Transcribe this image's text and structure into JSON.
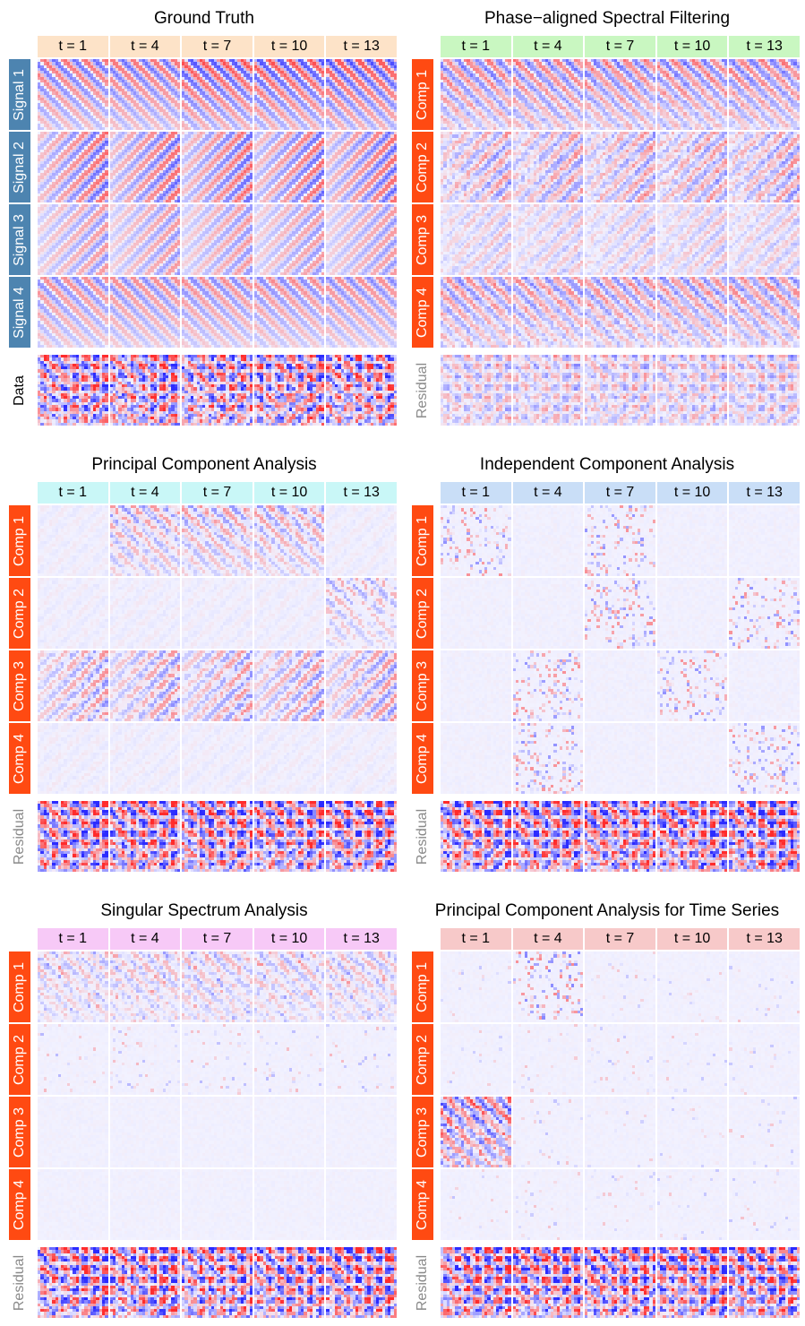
{
  "colors": {
    "negative": "#2b2bff",
    "positive": "#ff2b2b",
    "neutral": "#f2f2ff",
    "component_strip": "#ff4a12",
    "signal_strip": "#4d84b0"
  },
  "time_labels": [
    "t = 1",
    "t = 4",
    "t = 7",
    "t = 10",
    "t = 13"
  ],
  "panels": [
    {
      "id": "ground-truth",
      "title": "Ground Truth",
      "header_color": "#fde3c8",
      "rows": [
        {
          "label": "Signal 1",
          "style": "signal"
        },
        {
          "label": "Signal 2",
          "style": "signal"
        },
        {
          "label": "Signal 3",
          "style": "signal"
        },
        {
          "label": "Signal 4",
          "style": "signal"
        },
        {
          "label": "Data",
          "style": "data"
        }
      ]
    },
    {
      "id": "phase-aligned",
      "title": "Phase−aligned Spectral Filtering",
      "header_color": "#c9f7c1",
      "rows": [
        {
          "label": "Comp 1",
          "style": "comp"
        },
        {
          "label": "Comp 2",
          "style": "comp"
        },
        {
          "label": "Comp 3",
          "style": "comp"
        },
        {
          "label": "Comp 4",
          "style": "comp"
        },
        {
          "label": "Residual",
          "style": "residual"
        }
      ]
    },
    {
      "id": "pca",
      "title": "Principal Component Analysis",
      "header_color": "#c9f7f7",
      "rows": [
        {
          "label": "Comp 1",
          "style": "comp"
        },
        {
          "label": "Comp 2",
          "style": "comp"
        },
        {
          "label": "Comp 3",
          "style": "comp"
        },
        {
          "label": "Comp 4",
          "style": "comp"
        },
        {
          "label": "Residual",
          "style": "residual"
        }
      ]
    },
    {
      "id": "ica",
      "title": "Independent Component Analysis",
      "header_color": "#c9def7",
      "rows": [
        {
          "label": "Comp 1",
          "style": "comp"
        },
        {
          "label": "Comp 2",
          "style": "comp"
        },
        {
          "label": "Comp 3",
          "style": "comp"
        },
        {
          "label": "Comp 4",
          "style": "comp"
        },
        {
          "label": "Residual",
          "style": "residual"
        }
      ]
    },
    {
      "id": "ssa",
      "title": "Singular Spectrum Analysis",
      "header_color": "#f7c9f7",
      "rows": [
        {
          "label": "Comp 1",
          "style": "comp"
        },
        {
          "label": "Comp 2",
          "style": "comp"
        },
        {
          "label": "Comp 3",
          "style": "comp"
        },
        {
          "label": "Comp 4",
          "style": "comp"
        },
        {
          "label": "Residual",
          "style": "residual"
        }
      ]
    },
    {
      "id": "pca-ts",
      "title": "Principal Component Analysis for Time Series",
      "header_color": "#f7c9c9",
      "rows": [
        {
          "label": "Comp 1",
          "style": "comp"
        },
        {
          "label": "Comp 2",
          "style": "comp"
        },
        {
          "label": "Comp 3",
          "style": "comp"
        },
        {
          "label": "Comp 4",
          "style": "comp"
        },
        {
          "label": "Residual",
          "style": "residual"
        }
      ]
    }
  ],
  "chart_data": {
    "type": "heatmap",
    "grid_size": 24,
    "value_range": [
      -1,
      1
    ],
    "note_visible_scale": "none"
  }
}
